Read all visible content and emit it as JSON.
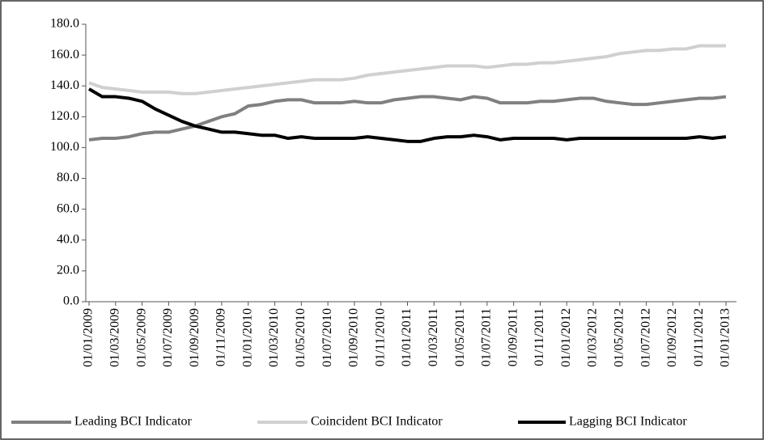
{
  "chart_data": {
    "type": "line",
    "categories": [
      "01/01/2009",
      null,
      "01/03/2009",
      null,
      "01/05/2009",
      null,
      "01/07/2009",
      null,
      "01/09/2009",
      null,
      "01/11/2009",
      null,
      "01/01/2010",
      null,
      "01/03/2010",
      null,
      "01/05/2010",
      null,
      "01/07/2010",
      null,
      "01/09/2010",
      null,
      "01/11/2010",
      null,
      "01/01/2011",
      null,
      "01/03/2011",
      null,
      "01/05/2011",
      null,
      "01/07/2011",
      null,
      "01/09/2011",
      null,
      "01/11/2011",
      null,
      "01/01/2012",
      null,
      "01/03/2012",
      null,
      "01/05/2012",
      null,
      "01/07/2012",
      null,
      "01/09/2012",
      null,
      "01/11/2012",
      null,
      "01/01/2013"
    ],
    "series": [
      {
        "name": "Leading BCI Indicator",
        "color": "#808080",
        "values": [
          105,
          106,
          106,
          107,
          109,
          110,
          110,
          112,
          114,
          117,
          120,
          122,
          127,
          128,
          130,
          131,
          131,
          129,
          129,
          129,
          130,
          129,
          129,
          131,
          132,
          133,
          133,
          132,
          131,
          133,
          132,
          129,
          129,
          129,
          130,
          130,
          131,
          132,
          132,
          130,
          129,
          128,
          128,
          129,
          130,
          131,
          132,
          132,
          133
        ]
      },
      {
        "name": "Coincident BCI Indicator",
        "color": "#d0d0d0",
        "values": [
          142,
          139,
          138,
          137,
          136,
          136,
          136,
          135,
          135,
          136,
          137,
          138,
          139,
          140,
          141,
          142,
          143,
          144,
          144,
          144,
          145,
          147,
          148,
          149,
          150,
          151,
          152,
          153,
          153,
          153,
          152,
          153,
          154,
          154,
          155,
          155,
          156,
          157,
          158,
          159,
          161,
          162,
          163,
          163,
          164,
          164,
          166,
          166,
          166
        ]
      },
      {
        "name": "Lagging BCI Indicator",
        "color": "#000000",
        "values": [
          138,
          133,
          133,
          132,
          130,
          125,
          121,
          117,
          114,
          112,
          110,
          110,
          109,
          108,
          108,
          106,
          107,
          106,
          106,
          106,
          106,
          107,
          106,
          105,
          104,
          104,
          106,
          107,
          107,
          108,
          107,
          105,
          106,
          106,
          106,
          106,
          105,
          106,
          106,
          106,
          106,
          106,
          106,
          106,
          106,
          106,
          107,
          106,
          107
        ]
      }
    ],
    "ylim": [
      0,
      180
    ],
    "yticks": [
      {
        "value": 0,
        "label": "0.0"
      },
      {
        "value": 20,
        "label": "20.0"
      },
      {
        "value": 40,
        "label": "40.0"
      },
      {
        "value": 60,
        "label": "60.0"
      },
      {
        "value": 80,
        "label": "80.0"
      },
      {
        "value": 100,
        "label": "100.0"
      },
      {
        "value": 120,
        "label": "120.0"
      },
      {
        "value": 140,
        "label": "140.0"
      },
      {
        "value": 160,
        "label": "160.0"
      },
      {
        "value": 180,
        "label": "180.0"
      }
    ],
    "grid": false,
    "legend": "bottom"
  }
}
